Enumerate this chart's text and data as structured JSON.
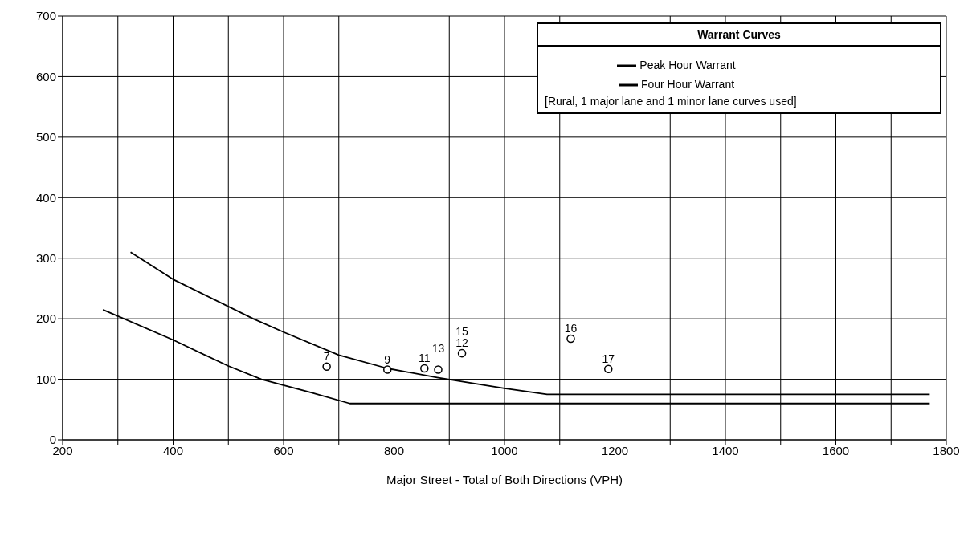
{
  "chart_data": {
    "type": "line",
    "xlabel": "Major Street - Total of Both Directions (VPH)",
    "legend_title": "Warrant Curves",
    "legend": "top right",
    "grid": true,
    "xlim": [
      200,
      1800
    ],
    "xticks": [
      200,
      {
        "value": 300,
        "label": null
      },
      400,
      {
        "value": 500,
        "label": null
      },
      600,
      {
        "value": 700,
        "label": null
      },
      800,
      {
        "value": 900,
        "label": null
      },
      1000,
      {
        "value": 1100,
        "label": null
      },
      1200,
      {
        "value": 1300,
        "label": null
      },
      1400,
      {
        "value": 1500,
        "label": null
      },
      1600,
      {
        "value": 1700,
        "label": null
      },
      1800
    ],
    "ylim": [
      0,
      700
    ],
    "yticks": [
      0,
      100,
      200,
      300,
      400,
      500,
      600,
      700
    ],
    "series": [
      {
        "name": "Peak Hour Warrant",
        "color": "#000000",
        "marker": "none",
        "x": [
          323,
          400,
          545,
          600,
          700,
          788,
          878,
          1000,
          1077,
          1770
        ],
        "values": [
          310,
          265,
          200,
          178,
          140,
          118,
          103,
          85,
          75,
          75
        ]
      },
      {
        "name": "Four Hour Warrant",
        "color": "#000000",
        "marker": "none",
        "x": [
          273,
          400,
          500,
          560,
          650,
          720,
          1770
        ],
        "values": [
          215,
          165,
          122,
          100,
          78,
          60,
          60
        ]
      },
      {
        "type": "scatter",
        "color": "#000000",
        "marker": "circle",
        "x": [
          678,
          788,
          855,
          880,
          923,
          1120,
          1188
        ],
        "values": [
          121,
          116,
          118,
          116,
          143,
          167,
          117
        ]
      }
    ],
    "annotations": [
      "[Rural, 1 major lane and 1 minor lane curves used]",
      {
        "text": "7",
        "x": 678,
        "y": 121
      },
      {
        "text": "9",
        "x": 788,
        "y": 116
      },
      {
        "text": "11",
        "x": 855,
        "y": 118
      },
      {
        "text": "13",
        "x": 880,
        "y": 116
      },
      {
        "text": "12",
        "x": 923,
        "y": 143
      },
      {
        "text": "15",
        "x": 923,
        "y": 143
      },
      {
        "text": "16",
        "x": 1120,
        "y": 167
      },
      {
        "text": "17",
        "x": 1188,
        "y": 117
      }
    ]
  }
}
